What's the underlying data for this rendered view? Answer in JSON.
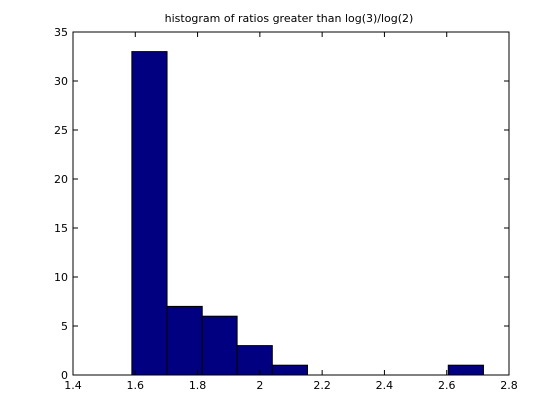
{
  "chart_data": {
    "type": "bar",
    "title": "histogram of ratios greater than log(3)/log(2)",
    "xlabel": "",
    "ylabel": "",
    "xlim": [
      1.4,
      2.8
    ],
    "ylim": [
      0,
      35
    ],
    "xticks": [
      1.4,
      1.6,
      1.8,
      2.0,
      2.2,
      2.4,
      2.6,
      2.8
    ],
    "xtick_labels": [
      "1.4",
      "1.6",
      "1.8",
      "2",
      "2.2",
      "2.4",
      "2.6",
      "2.8"
    ],
    "yticks": [
      0,
      5,
      10,
      15,
      20,
      25,
      30,
      35
    ],
    "ytick_labels": [
      "0",
      "5",
      "10",
      "15",
      "20",
      "25",
      "30",
      "35"
    ],
    "bins": [
      {
        "left": 1.589,
        "right": 1.702,
        "count": 33
      },
      {
        "left": 1.702,
        "right": 1.815,
        "count": 7
      },
      {
        "left": 1.815,
        "right": 1.927,
        "count": 6
      },
      {
        "left": 1.927,
        "right": 2.04,
        "count": 3
      },
      {
        "left": 2.04,
        "right": 2.153,
        "count": 1
      },
      {
        "left": 2.153,
        "right": 2.266,
        "count": 0
      },
      {
        "left": 2.266,
        "right": 2.379,
        "count": 0
      },
      {
        "left": 2.379,
        "right": 2.492,
        "count": 0
      },
      {
        "left": 2.492,
        "right": 2.605,
        "count": 0
      },
      {
        "left": 2.605,
        "right": 2.718,
        "count": 1
      }
    ],
    "bar_color": "#000080",
    "grid": false,
    "box": true
  }
}
